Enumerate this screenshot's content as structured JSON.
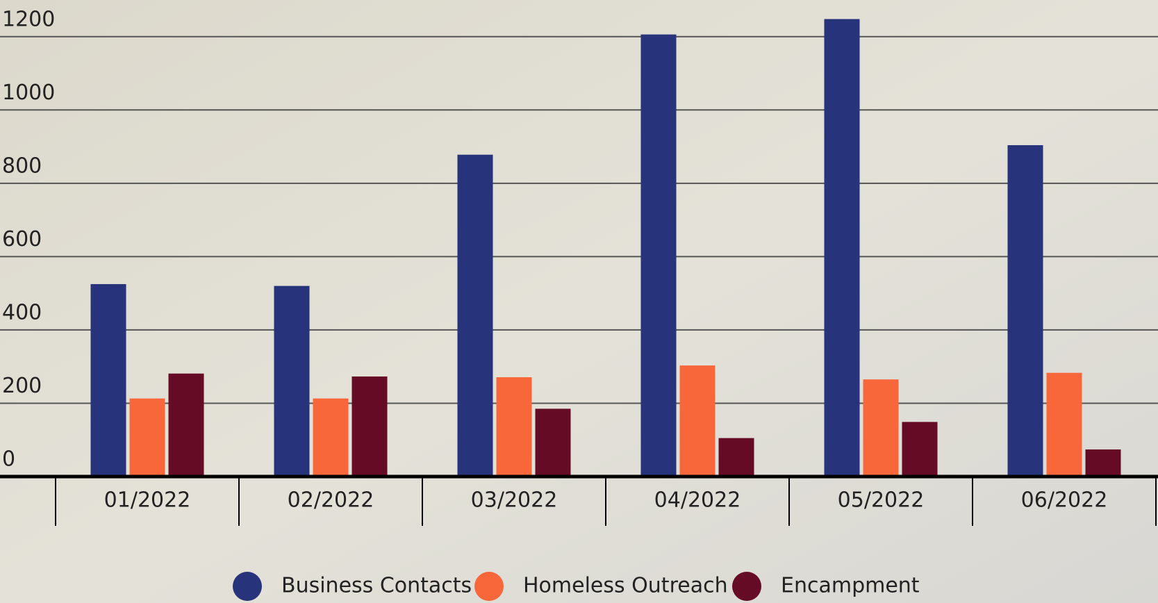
{
  "chart_data": {
    "type": "bar",
    "categories": [
      "01/2022",
      "02/2022",
      "03/2022",
      "04/2022",
      "05/2022",
      "06/2022"
    ],
    "series": [
      {
        "name": "Business Contacts",
        "color": "#27337a",
        "values": [
          525,
          520,
          878,
          1206,
          1248,
          904
        ]
      },
      {
        "name": "Homeless Outreach",
        "color": "#f8673a",
        "values": [
          213,
          213,
          271,
          303,
          265,
          283
        ]
      },
      {
        "name": "Encampment",
        "color": "#650b26",
        "values": [
          281,
          273,
          185,
          105,
          149,
          74
        ]
      }
    ],
    "ylim": [
      0,
      1300
    ],
    "yticks": [
      0,
      200,
      400,
      600,
      800,
      1000,
      1200
    ],
    "grid": true,
    "legend": "bottom"
  }
}
